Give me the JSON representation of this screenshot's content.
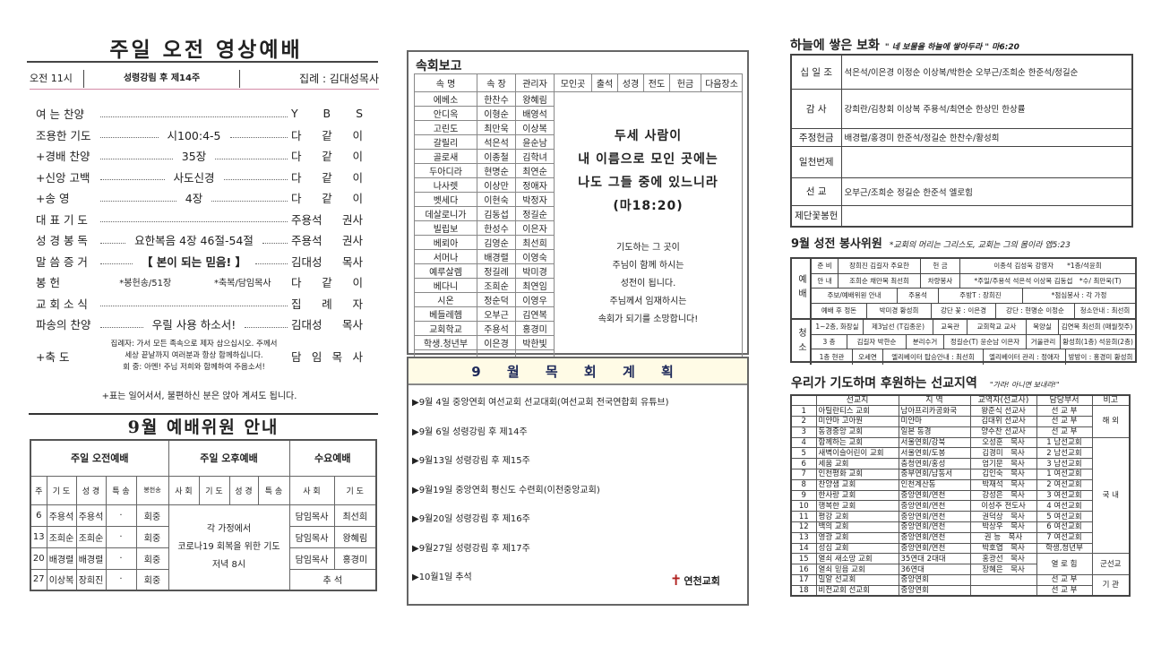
{
  "left": {
    "title": "주일 오전 영상예배",
    "time": "오전 11시",
    "week": "성령강림 후 제14주",
    "leader": "집례 : 김대성목사",
    "liturgy": [
      {
        "label": "여 는 찬양",
        "center": "",
        "person": "Y B S"
      },
      {
        "label": "조용한 기도",
        "center": "시100:4-5",
        "person": "다 같 이"
      },
      {
        "label": "+경배 찬양",
        "center": "35장",
        "person": "다 같 이"
      },
      {
        "label": "+신앙 고백",
        "center": "사도신경",
        "person": "다 같 이"
      },
      {
        "label": "+송 영",
        "center": "4장",
        "person": "다 같 이"
      },
      {
        "label": "대 표 기 도",
        "center": "",
        "person": "주용석 권사"
      },
      {
        "label": "성 경 봉 독",
        "center": "요한복음 4장 46절-54절",
        "person": "주용석 권사"
      },
      {
        "label": "말 씀 증 거",
        "center": "【 본이 되는 믿음! 】",
        "person": "김대성 목사"
      },
      {
        "label": "봉 헌",
        "center": "*봉헌송/51장",
        "center2": "*축복/담임목사",
        "person": "다 같 이"
      },
      {
        "label": "교 회 소 식",
        "center": "",
        "person": "집 례 자"
      },
      {
        "label": "파송의 찬양",
        "center": "우릴 사용 하소서!",
        "person": "김대성 목사"
      }
    ],
    "blessing": {
      "label": "+축 도",
      "lines": [
        "집례자: 가서 모든 족속으로 제자 삼으십시오. 주께서",
        "세상 끝날까지 여러분과 항상 함께하십니다.",
        "회 중: 아멘! 주님 저희와 함께하여 주옵소서!"
      ],
      "person": "담 임 목 사"
    },
    "note": "+표는 일어서서, 불편하신 분은 앉아 계셔도 됩니다."
  },
  "worship_committee": {
    "title": "9월 예배위원 안내",
    "groups": [
      "주일 오전예배",
      "주일 오후예배",
      "수요예배"
    ],
    "headers": [
      "주",
      "기 도",
      "성 경",
      "특 송",
      "봉헌송",
      "사 회",
      "기 도",
      "성 경",
      "특 송",
      "사 회",
      "기 도"
    ],
    "rows": [
      {
        "week": "6",
        "prayer": "주용석",
        "bible": "주용석",
        "special": "·",
        "offering": "회중",
        "wed_lead": "담임목사",
        "wed_prayer": "최선희"
      },
      {
        "week": "13",
        "prayer": "조희순",
        "bible": "조희순",
        "special": "·",
        "offering": "회중",
        "wed_lead": "담임목사",
        "wed_prayer": "왕혜림"
      },
      {
        "week": "20",
        "prayer": "배경렬",
        "bible": "배경렬",
        "special": "·",
        "offering": "회중",
        "wed_lead": "담임목사",
        "wed_prayer": "홍경미"
      },
      {
        "week": "27",
        "prayer": "이상복",
        "bible": "장희진",
        "special": "·",
        "offering": "회중",
        "wed_merged": "추 석"
      }
    ],
    "afternoon_note": [
      "각 가정에서",
      "코로나19 회복을 위한 기도",
      "저녁 8시"
    ]
  },
  "cell_report": {
    "title": "속회보고",
    "headers": [
      "속 명",
      "속 장",
      "관리자",
      "모인곳",
      "출석",
      "성경",
      "전도",
      "헌금",
      "다음장소"
    ],
    "rows": [
      [
        "에베소",
        "한찬수",
        "왕혜림"
      ],
      [
        "안디옥",
        "이형순",
        "배영석"
      ],
      [
        "고린도",
        "최만욱",
        "이상복"
      ],
      [
        "갈릴리",
        "석은석",
        "윤순남"
      ],
      [
        "골로새",
        "이종철",
        "김학녀"
      ],
      [
        "두아디라",
        "현명순",
        "최연순"
      ],
      [
        "나사렛",
        "이상만",
        "정애자"
      ],
      [
        "벳세다",
        "이현숙",
        "박정자"
      ],
      [
        "데살로니가",
        "김동섭",
        "정길순"
      ],
      [
        "빌립보",
        "한성수",
        "이은자"
      ],
      [
        "베뢰아",
        "김영순",
        "최선희"
      ],
      [
        "서머나",
        "배경렬",
        "이영숙"
      ],
      [
        "예루살렘",
        "정길례",
        "박미경"
      ],
      [
        "베다니",
        "조희순",
        "최연임"
      ],
      [
        "시온",
        "정순덕",
        "이영우"
      ],
      [
        "베들레헴",
        "오부근",
        "김연복"
      ],
      [
        "교회학교",
        "주용석",
        "홍경미"
      ],
      [
        "학생.청년부",
        "이은경",
        "박한빛"
      ],
      [
        "",
        "",
        ""
      ]
    ],
    "verse": [
      "두세 사람이",
      "내 이름으로 모인 곳에는",
      "나도 그들 중에 있느니라",
      "(마18:20)"
    ],
    "message": [
      "기도하는 그 곳이",
      "주님이 함께 하시는",
      "성전이 됩니다.",
      "주님께서 임재하시는",
      "속회가 되기를 소망합니다!"
    ]
  },
  "pastoral_plan": {
    "title": "9 월 목 회 계 획",
    "items": [
      "▶9월 4일 중앙연회 여선교회 선교대회(여선교회 전국연합회 유튜브)",
      "▶9월 6일 성령강림 후 제14주",
      "▶9월13일 성령강림 후 제15주",
      "▶9월19일 중앙연회 평신도 수련회(이천중앙교회)",
      "▶9월20일 성령강림 후 제16주",
      "▶9월27일 성령강림 후 제17주",
      "▶10월1일 추석"
    ],
    "logo": "연천교회"
  },
  "treasure": {
    "title": "하늘에 쌓은 보화",
    "subtitle": "\" 네 보물을 하늘에 쌓아두라 \" 마6:20",
    "rows": [
      {
        "label": "십 일 조",
        "value": "석은석/이은경 이정순 이상복/박한순 오부근/조희순 한준석/정길순"
      },
      {
        "label": "감 사",
        "value": "강희란/김창회 이상복 주용석/최연순 한상민 한상률"
      },
      {
        "label": "주정헌금",
        "value": "배경렬/홍경미 한준석/정길순 한찬수/황성희"
      },
      {
        "label": "일천번제",
        "value": ""
      },
      {
        "label": "선 교",
        "value": "오부근/조희순 정길순 한준석 엘로힘"
      },
      {
        "label": "제단꽃봉헌",
        "value": ""
      }
    ]
  },
  "service": {
    "title": "9월 성전 봉사위원",
    "subtitle": "*교회의 머리는 그리스도, 교회는 그의 몸이라 엡5:23",
    "groups": [
      {
        "label": "예배",
        "rows": [
          [
            "준 비",
            "장희진 김길자 주요한",
            "헌 금",
            "이종석 김성욱 강영자　　*1층/석윤희"
          ],
          [
            "안 내",
            "조희순 채만복 최선희",
            "차량봉사",
            "*주일/주용석 석은석 이상복 김동섭　*수/ 최만욱(T)"
          ],
          [
            "주보/예배위원 안내",
            "주용석",
            "주방T : 장희진",
            "*점심봉사 : 각 가정"
          ],
          [
            "예배 후 정돈",
            "박미경 황성희",
            "강단 꽃 : 이은경",
            "강단 : 현명순 이정순",
            "청소안내 : 최선희"
          ]
        ]
      },
      {
        "label": "청소",
        "rows": [
          [
            "1~2층, 화장실",
            "제3남선 (T김종운)",
            "교육관",
            "교회학교 교사",
            "목양실",
            "김연복 최선희 (매월첫주)"
          ],
          [
            "3 층",
            "김길자 박한순",
            "분리수거",
            "정길순(T) 윤순남 이은자",
            "거울관리",
            "황성희(1층) 석윤희(2층)"
          ],
          [
            "1층 현관",
            "오세연",
            "엘리베이터 탑승안내 : 최선희",
            "엘리베이터 관리 : 정애자",
            "방방이 : 홍경미 황성희"
          ]
        ]
      }
    ]
  },
  "missions": {
    "title": "우리가 기도하며 후원하는 선교지역",
    "subtitle": "\"가라! 아니면 보내라!\"",
    "headers": [
      "",
      "선교지",
      "지 역",
      "교역자(선교사)",
      "담당부서",
      "비고"
    ],
    "rows": [
      [
        "1",
        "아틸란티스 교회",
        "남아프리카공화국",
        "왕준식 선교사",
        "선 교 부"
      ],
      [
        "2",
        "미얀마 고아원",
        "미얀마",
        "김대위 선교사",
        "선 교 부"
      ],
      [
        "3",
        "동경중앙 교회",
        "일본 동경",
        "양수찬 선교사",
        "선 교 부"
      ],
      [
        "4",
        "함께하는 교회",
        "서울연회/강북",
        "오성훈　목사",
        "1 남선교회"
      ],
      [
        "5",
        "새벽이슬어린이 교회",
        "서울연회/도봉",
        "김경미　목사",
        "2 남선교회"
      ],
      [
        "6",
        "세움 교회",
        "충청연회/홍성",
        "엄기문　목사",
        "3 남선교회"
      ],
      [
        "7",
        "인천평화 교회",
        "중부연회/남동서",
        "김인숙　목사",
        "1 여선교회"
      ],
      [
        "8",
        "찬양샘 교회",
        "인천계산동",
        "박재석　목사",
        "2 여선교회"
      ],
      [
        "9",
        "한사랑 교회",
        "중앙연회/연천",
        "강성은　목사",
        "3 여선교회"
      ],
      [
        "10",
        "행복한 교회",
        "중앙연회/연천",
        "이성주 전도사",
        "4 여선교회"
      ],
      [
        "11",
        "평강 교회",
        "중앙연회/연천",
        "권덕상　목사",
        "5 여선교회"
      ],
      [
        "12",
        "백의 교회",
        "중앙연회/연천",
        "박상우　목사",
        "6 여선교회"
      ],
      [
        "13",
        "영광 교회",
        "중앙연회/연천",
        "권 능　목사",
        "7 여선교회"
      ],
      [
        "14",
        "성심 교회",
        "중앙연회/연천",
        "박호엽　목사",
        "학생,청년부"
      ],
      [
        "15",
        "열쇠 새소망 교회",
        "35연대 2대대",
        "홍광선　목사",
        "열 로 힘"
      ],
      [
        "16",
        "열쇠 믿음 교회",
        "36연대",
        "장혜은　목사",
        ""
      ],
      [
        "17",
        "밀알 선교회",
        "중앙연회",
        "",
        "선 교 부"
      ],
      [
        "18",
        "비전교회 선교회",
        "중앙연회",
        "",
        "선 교 부"
      ]
    ],
    "notes": [
      "해 외",
      "국 내",
      "군선교",
      "기 관"
    ]
  }
}
